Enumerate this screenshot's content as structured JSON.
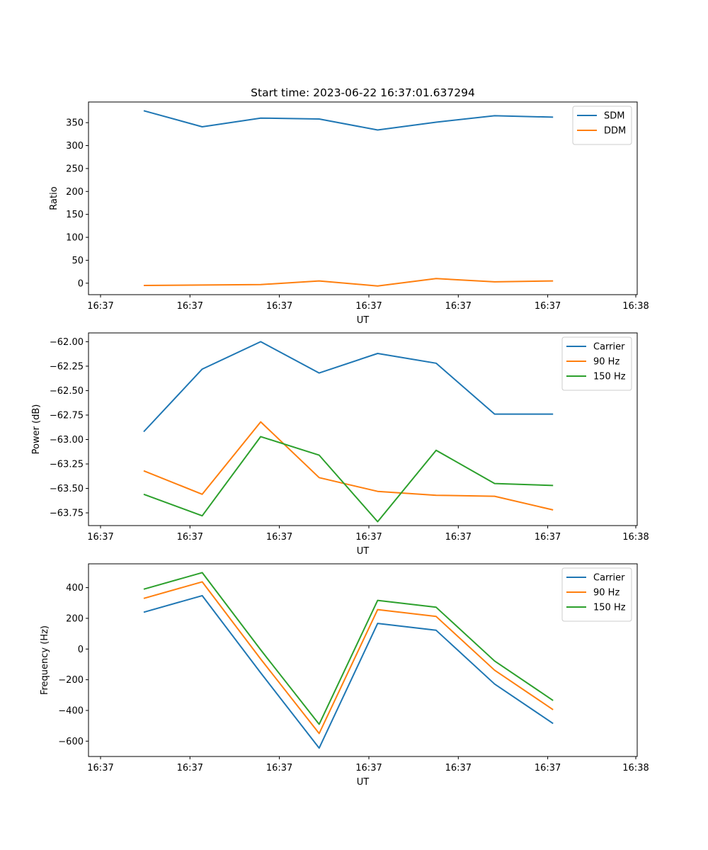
{
  "figure_title": "Start time: 2023-06-22 16:37:01.637294",
  "chart_data": [
    {
      "type": "line",
      "title": "Start time: 2023-06-22 16:37:01.637294",
      "xlabel": "UT",
      "ylabel": "Ratio",
      "x_tick_labels": [
        "16:37",
        "16:37",
        "16:37",
        "16:37",
        "16:37",
        "16:37",
        "16:38"
      ],
      "y_ticks": [
        0,
        50,
        100,
        150,
        200,
        250,
        300,
        350
      ],
      "ylim": [
        -25,
        395
      ],
      "legend_position": "upper-right",
      "grid": false,
      "series": [
        {
          "name": "SDM",
          "color": "#1f77b4",
          "values": [
            376,
            341,
            360,
            358,
            334,
            351,
            365,
            362
          ]
        },
        {
          "name": "DDM",
          "color": "#ff7f0e",
          "values": [
            -5,
            -4,
            -3,
            5,
            -6,
            10,
            3,
            5
          ]
        }
      ]
    },
    {
      "type": "line",
      "title": "",
      "xlabel": "UT",
      "ylabel": "Power (dB)",
      "x_tick_labels": [
        "16:37",
        "16:37",
        "16:37",
        "16:37",
        "16:37",
        "16:37",
        "16:38"
      ],
      "y_ticks": [
        -63.75,
        -63.5,
        -63.25,
        -63.0,
        -62.75,
        -62.5,
        -62.25,
        -62.0
      ],
      "y_tick_labels": [
        "−63.75",
        "−63.50",
        "−63.25",
        "−63.00",
        "−62.75",
        "−62.50",
        "−62.25",
        "−62.00"
      ],
      "ylim": [
        -63.88,
        -61.91
      ],
      "legend_position": "upper-right",
      "grid": false,
      "series": [
        {
          "name": "Carrier",
          "color": "#1f77b4",
          "values": [
            -62.92,
            -62.28,
            -62.0,
            -62.32,
            -62.12,
            -62.22,
            -62.74,
            -62.74
          ]
        },
        {
          "name": "90 Hz",
          "color": "#ff7f0e",
          "values": [
            -63.32,
            -63.56,
            -62.82,
            -63.39,
            -63.53,
            -63.57,
            -63.58,
            -63.72
          ]
        },
        {
          "name": "150 Hz",
          "color": "#2ca02c",
          "values": [
            -63.56,
            -63.78,
            -62.97,
            -63.16,
            -63.84,
            -63.11,
            -63.45,
            -63.47
          ]
        }
      ]
    },
    {
      "type": "line",
      "title": "",
      "xlabel": "UT",
      "ylabel": "Frequency (Hz)",
      "x_tick_labels": [
        "16:37",
        "16:37",
        "16:37",
        "16:37",
        "16:37",
        "16:37",
        "16:38"
      ],
      "y_ticks": [
        -600,
        -400,
        -200,
        0,
        200,
        400
      ],
      "y_tick_labels": [
        "−600",
        "−400",
        "−200",
        "0",
        "200",
        "400"
      ],
      "ylim": [
        -700,
        555
      ],
      "legend_position": "upper-right",
      "grid": false,
      "series": [
        {
          "name": "Carrier",
          "color": "#1f77b4",
          "values": [
            240,
            348,
            -155,
            -645,
            167,
            122,
            -228,
            -485
          ]
        },
        {
          "name": "90 Hz",
          "color": "#ff7f0e",
          "values": [
            330,
            438,
            -65,
            -550,
            257,
            212,
            -138,
            -395
          ]
        },
        {
          "name": "150 Hz",
          "color": "#2ca02c",
          "values": [
            390,
            498,
            -5,
            -490,
            317,
            272,
            -78,
            -335
          ]
        }
      ]
    }
  ]
}
